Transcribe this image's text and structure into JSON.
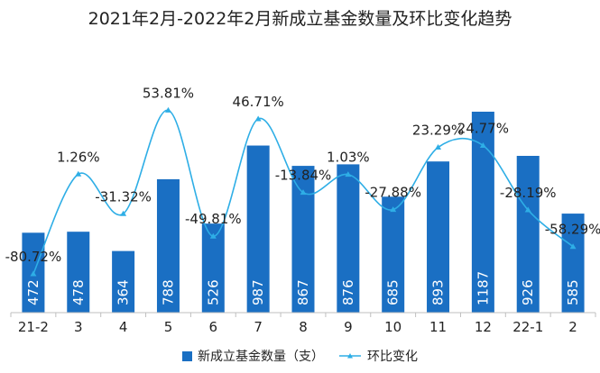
{
  "chart_data": {
    "type": "bar",
    "title": "2021年2月-2022年2月新成立基金数量及环比变化趋势",
    "categories": [
      "21-2",
      "3",
      "4",
      "5",
      "6",
      "7",
      "8",
      "9",
      "10",
      "11",
      "12",
      "22-1",
      "2"
    ],
    "series": [
      {
        "name": "新成立基金数量（支）",
        "type": "bar",
        "values": [
          472,
          478,
          364,
          788,
          526,
          987,
          867,
          876,
          685,
          893,
          1187,
          926,
          585
        ],
        "labels": [
          "472",
          "478",
          "364",
          "788",
          "526",
          "987",
          "867",
          "876",
          "685",
          "893",
          "1187",
          "926",
          "585"
        ],
        "color": "#1a6fc3"
      },
      {
        "name": "环比变化",
        "type": "line",
        "values": [
          -80.72,
          1.26,
          -31.32,
          53.81,
          -49.81,
          46.71,
          -13.84,
          1.03,
          -27.88,
          23.29,
          24.77,
          -28.19,
          -58.29
        ],
        "labels": [
          "-80.72%",
          "1.26%",
          "-31.32%",
          "53.81%",
          "-49.81%",
          "46.71%",
          "-13.84%",
          "1.03%",
          "-27.88%",
          "23.29%",
          "24.77%",
          "-28.19%",
          "-58.29%"
        ],
        "color": "#2eaee6"
      }
    ],
    "legend_position": "bottom",
    "grid": false
  }
}
